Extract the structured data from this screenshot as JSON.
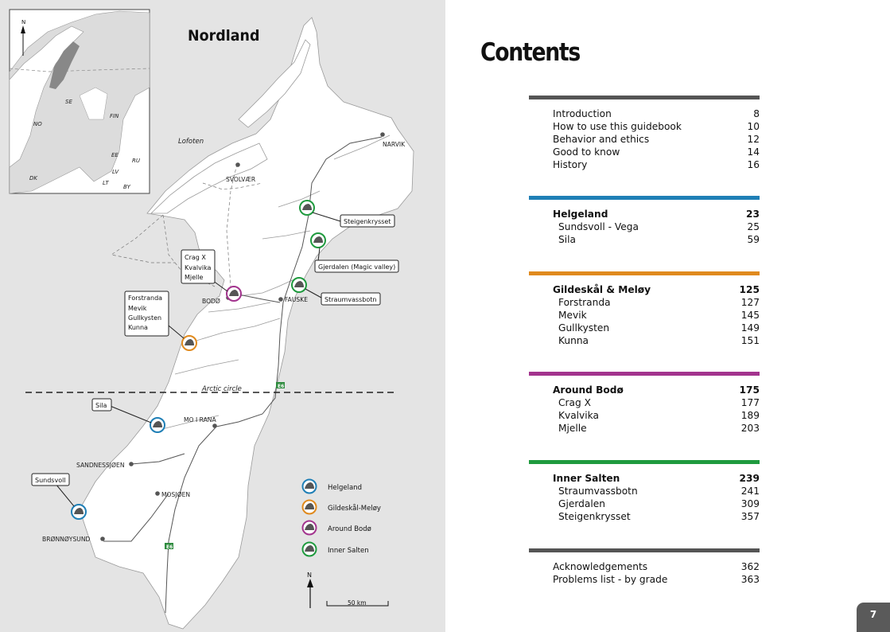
{
  "map": {
    "title": "Nordland",
    "inset": {
      "north": "N",
      "countries": [
        "NO",
        "SE",
        "FIN",
        "DK",
        "EE",
        "RU",
        "LV",
        "LT",
        "BY"
      ]
    },
    "places": {
      "lofoten": "Lofoten",
      "narvik": "NARVIK",
      "svolvaer": "SVOLVÆR",
      "bodo": "BODØ",
      "fauske": "FAUSKE",
      "mo_i_rana": "MO I RANA",
      "sandnessjoen": "SANDNESSJØEN",
      "mosjoen": "MOSJØEN",
      "bronnoysund": "BRØNNØYSUND",
      "arctic_circle": "Arctic circle",
      "e6": "E6"
    },
    "callouts": {
      "steigenkrysset": "Steigenkrysset",
      "gjerdalen": "Gjerdalen (Magic valley)",
      "straumvassbotn": "Straumvassbotn",
      "bodo_areas": [
        "Crag X",
        "Kvalvika",
        "Mjelle"
      ],
      "meloy_areas": [
        "Forstranda",
        "Mevik",
        "Gullkysten",
        "Kunna"
      ],
      "sila": "Sila",
      "sundsvoll": "Sundsvoll"
    },
    "legend": [
      {
        "label": "Helgeland",
        "color": "#1f7fb6"
      },
      {
        "label": "Gildeskål-Meløy",
        "color": "#e08a1e"
      },
      {
        "label": "Around Bodø",
        "color": "#a3348e"
      },
      {
        "label": "Inner Salten",
        "color": "#1f9a3e"
      }
    ],
    "north": "N",
    "scale": "50 km"
  },
  "toc": {
    "title": "Contents",
    "intro": {
      "color": "#555555",
      "items": [
        {
          "label": "Introduction",
          "page": "8"
        },
        {
          "label": "How to use this guidebook",
          "page": "10"
        },
        {
          "label": "Behavior and ethics",
          "page": "12"
        },
        {
          "label": "Good to know",
          "page": "14"
        },
        {
          "label": "History",
          "page": "16"
        }
      ]
    },
    "helgeland": {
      "color": "#1f7fb6",
      "head": {
        "label": "Helgeland",
        "page": "23"
      },
      "items": [
        {
          "label": "Sundsvoll - Vega",
          "page": "25"
        },
        {
          "label": "Sila",
          "page": "59"
        }
      ]
    },
    "gildeskal": {
      "color": "#e08a1e",
      "head": {
        "label": "Gildeskål & Meløy",
        "page": "125"
      },
      "items": [
        {
          "label": "Forstranda",
          "page": "127"
        },
        {
          "label": "Mevik",
          "page": "145"
        },
        {
          "label": "Gullkysten",
          "page": "149"
        },
        {
          "label": "Kunna",
          "page": "151"
        }
      ]
    },
    "bodo": {
      "color": "#a3348e",
      "head": {
        "label": "Around Bodø",
        "page": "175"
      },
      "items": [
        {
          "label": "Crag X",
          "page": "177"
        },
        {
          "label": "Kvalvika",
          "page": "189"
        },
        {
          "label": "Mjelle",
          "page": "203"
        }
      ]
    },
    "salten": {
      "color": "#1f9a3e",
      "head": {
        "label": "Inner Salten",
        "page": "239"
      },
      "items": [
        {
          "label": "Straumvassbotn",
          "page": "241"
        },
        {
          "label": "Gjerdalen",
          "page": "309"
        },
        {
          "label": "Steigenkrysset",
          "page": "357"
        }
      ]
    },
    "end": {
      "color": "#555555",
      "items": [
        {
          "label": "Acknowledgements",
          "page": "362"
        },
        {
          "label": "Problems list - by grade",
          "page": "363"
        }
      ]
    }
  },
  "page_number": "7"
}
